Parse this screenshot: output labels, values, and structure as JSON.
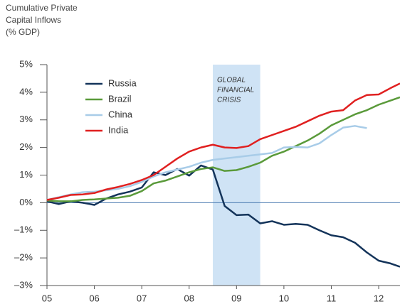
{
  "chart_data": {
    "type": "line",
    "ylabel": [
      "Cumulative Private",
      "Capital Inflows",
      "(% GDP)"
    ],
    "annotation": [
      "GLOBAL",
      "FINANCIAL",
      "CRISIS"
    ],
    "shade": [
      2008.5,
      2009.5
    ],
    "shade_color": "#cfe3f5",
    "x": [
      2005,
      2005.25,
      2005.5,
      2005.75,
      2006,
      2006.25,
      2006.5,
      2006.75,
      2007,
      2007.25,
      2007.5,
      2007.75,
      2008,
      2008.25,
      2008.5,
      2008.75,
      2009,
      2009.25,
      2009.5,
      2009.75,
      2010,
      2010.25,
      2010.5,
      2010.75,
      2011,
      2011.25,
      2011.5,
      2011.75,
      2012,
      2012.25,
      2012.45
    ],
    "series": [
      {
        "name": "Russia",
        "color": "#14345a",
        "values": [
          0.05,
          -0.05,
          0.05,
          0.0,
          -0.08,
          0.15,
          0.3,
          0.4,
          0.55,
          1.1,
          1.0,
          1.22,
          0.98,
          1.35,
          1.2,
          -0.12,
          -0.45,
          -0.43,
          -0.75,
          -0.67,
          -0.8,
          -0.77,
          -0.8,
          -1.0,
          -1.18,
          -1.25,
          -1.45,
          -1.8,
          -2.1,
          -2.2,
          -2.32
        ]
      },
      {
        "name": "Brazil",
        "color": "#5a9a3a",
        "values": [
          0.08,
          0.05,
          0.05,
          0.1,
          0.12,
          0.15,
          0.18,
          0.25,
          0.42,
          0.7,
          0.8,
          0.95,
          1.1,
          1.22,
          1.28,
          1.15,
          1.18,
          1.3,
          1.45,
          1.7,
          1.85,
          2.05,
          2.25,
          2.5,
          2.8,
          3.0,
          3.2,
          3.35,
          3.55,
          3.7,
          3.82
        ]
      },
      {
        "name": "China",
        "color": "#a8cce8",
        "values": [
          0.1,
          0.2,
          0.3,
          0.38,
          0.4,
          0.45,
          0.5,
          0.6,
          0.75,
          0.95,
          1.1,
          1.2,
          1.3,
          1.45,
          1.55,
          1.6,
          1.65,
          1.7,
          1.75,
          1.8,
          2.0,
          2.02,
          2.0,
          2.15,
          2.45,
          2.72,
          2.78,
          2.7,
          null,
          null,
          null
        ]
      },
      {
        "name": "India",
        "color": "#e02020",
        "values": [
          0.1,
          0.18,
          0.28,
          0.3,
          0.35,
          0.48,
          0.57,
          0.68,
          0.82,
          1.0,
          1.3,
          1.6,
          1.85,
          2.0,
          2.1,
          2.0,
          1.98,
          2.05,
          2.3,
          2.45,
          2.6,
          2.75,
          2.95,
          3.15,
          3.3,
          3.35,
          3.7,
          3.9,
          3.92,
          4.15,
          4.32
        ]
      }
    ],
    "xlim": [
      2005,
      2012.45
    ],
    "xticks": [
      {
        "value": 2005,
        "label": "05"
      },
      {
        "value": 2006,
        "label": "06"
      },
      {
        "value": 2007,
        "label": "07"
      },
      {
        "value": 2008,
        "label": "08"
      },
      {
        "value": 2009,
        "label": "09"
      },
      {
        "value": 2010,
        "label": "10"
      },
      {
        "value": 2011,
        "label": "11"
      },
      {
        "value": 2012,
        "label": "12"
      }
    ],
    "ylim": [
      -3,
      5
    ],
    "yticks": [
      {
        "value": 5,
        "label": "5%"
      },
      {
        "value": 4,
        "label": "4%"
      },
      {
        "value": 3,
        "label": "3%"
      },
      {
        "value": 2,
        "label": "2%"
      },
      {
        "value": 1,
        "label": "1%"
      },
      {
        "value": 0,
        "label": "0%"
      },
      {
        "value": -1,
        "label": "–1%"
      },
      {
        "value": -2,
        "label": "–2%"
      },
      {
        "value": -3,
        "label": "–3%"
      }
    ],
    "zero_line_color": "#4a7ab0",
    "legend": "upper left",
    "grid": false
  }
}
